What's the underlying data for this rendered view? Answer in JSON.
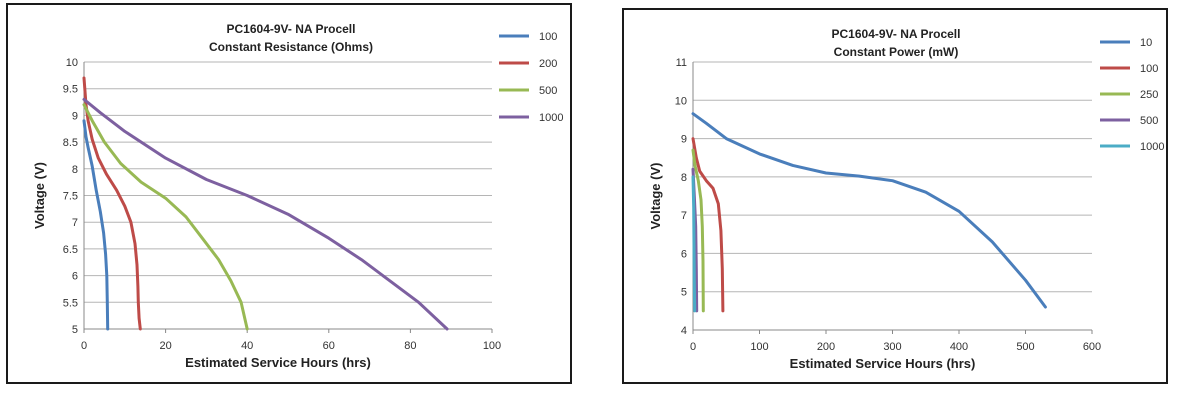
{
  "chart_data": [
    {
      "type": "line",
      "title": "PC1604-9V- NA Procell",
      "subtitle": "Constant Resistance (Ohms)",
      "xlabel": "Estimated Service Hours (hrs)",
      "ylabel": "Voltage (V)",
      "xlim": [
        0,
        100
      ],
      "ylim": [
        5,
        10
      ],
      "xticks": [
        0,
        20,
        40,
        60,
        80,
        100
      ],
      "yticks": [
        5,
        5.5,
        6,
        6.5,
        7,
        7.5,
        8,
        8.5,
        9,
        9.5,
        10
      ],
      "grid": "horizontal",
      "legend_position": "right",
      "series": [
        {
          "name": "100",
          "color": "#4a7ebb",
          "points": [
            [
              0,
              8.9
            ],
            [
              0.5,
              8.6
            ],
            [
              1,
              8.4
            ],
            [
              2,
              8.05
            ],
            [
              3,
              7.6
            ],
            [
              4,
              7.2
            ],
            [
              4.8,
              6.8
            ],
            [
              5.3,
              6.4
            ],
            [
              5.6,
              6.0
            ],
            [
              5.7,
              5.5
            ],
            [
              5.8,
              5.0
            ]
          ]
        },
        {
          "name": "200",
          "color": "#be4b48",
          "points": [
            [
              0,
              9.7
            ],
            [
              0.5,
              9.2
            ],
            [
              1,
              8.9
            ],
            [
              2,
              8.55
            ],
            [
              3.5,
              8.2
            ],
            [
              5.5,
              7.9
            ],
            [
              8,
              7.6
            ],
            [
              10,
              7.3
            ],
            [
              11.5,
              7.0
            ],
            [
              12.5,
              6.6
            ],
            [
              13,
              6.2
            ],
            [
              13.2,
              5.8
            ],
            [
              13.3,
              5.5
            ],
            [
              13.5,
              5.2
            ],
            [
              13.8,
              5.0
            ]
          ]
        },
        {
          "name": "500",
          "color": "#98b954",
          "points": [
            [
              0,
              9.2
            ],
            [
              2,
              8.9
            ],
            [
              5,
              8.5
            ],
            [
              9,
              8.1
            ],
            [
              14,
              7.75
            ],
            [
              20,
              7.45
            ],
            [
              25,
              7.1
            ],
            [
              29,
              6.7
            ],
            [
              33,
              6.3
            ],
            [
              36,
              5.9
            ],
            [
              38.5,
              5.5
            ],
            [
              40,
              5.0
            ]
          ]
        },
        {
          "name": "1000",
          "color": "#7d60a0",
          "points": [
            [
              0,
              9.3
            ],
            [
              4,
              9.05
            ],
            [
              10,
              8.7
            ],
            [
              20,
              8.2
            ],
            [
              30,
              7.8
            ],
            [
              40,
              7.5
            ],
            [
              50,
              7.15
            ],
            [
              60,
              6.7
            ],
            [
              68,
              6.3
            ],
            [
              75,
              5.9
            ],
            [
              82,
              5.5
            ],
            [
              89,
              5.0
            ]
          ]
        }
      ]
    },
    {
      "type": "line",
      "title": "PC1604-9V- NA Procell",
      "subtitle": "Constant Power  (mW)",
      "xlabel": "Estimated Service Hours (hrs)",
      "ylabel": "Voltage (V)",
      "xlim": [
        0,
        600
      ],
      "ylim": [
        4,
        11
      ],
      "xticks": [
        0,
        100,
        200,
        300,
        400,
        500,
        600
      ],
      "yticks": [
        4,
        5,
        6,
        7,
        8,
        9,
        10,
        11
      ],
      "grid": "horizontal",
      "legend_position": "right",
      "series": [
        {
          "name": "10",
          "color": "#4a7ebb",
          "points": [
            [
              0,
              9.65
            ],
            [
              20,
              9.4
            ],
            [
              50,
              9.0
            ],
            [
              100,
              8.6
            ],
            [
              150,
              8.3
            ],
            [
              200,
              8.1
            ],
            [
              250,
              8.02
            ],
            [
              300,
              7.9
            ],
            [
              350,
              7.6
            ],
            [
              400,
              7.1
            ],
            [
              450,
              6.3
            ],
            [
              500,
              5.3
            ],
            [
              530,
              4.6
            ]
          ]
        },
        {
          "name": "100",
          "color": "#be4b48",
          "points": [
            [
              0,
              9.0
            ],
            [
              5,
              8.5
            ],
            [
              10,
              8.15
            ],
            [
              20,
              7.9
            ],
            [
              30,
              7.7
            ],
            [
              38,
              7.3
            ],
            [
              42,
              6.6
            ],
            [
              44,
              5.6
            ],
            [
              45,
              4.5
            ]
          ]
        },
        {
          "name": "250",
          "color": "#98b954",
          "points": [
            [
              0,
              8.7
            ],
            [
              3,
              8.3
            ],
            [
              8,
              7.9
            ],
            [
              12,
              7.4
            ],
            [
              14,
              6.7
            ],
            [
              15,
              5.8
            ],
            [
              15.5,
              4.5
            ]
          ]
        },
        {
          "name": "500",
          "color": "#7d60a0",
          "points": [
            [
              0,
              8.2
            ],
            [
              2,
              7.5
            ],
            [
              4,
              6.7
            ],
            [
              5,
              5.6
            ],
            [
              5.5,
              4.5
            ]
          ]
        },
        {
          "name": "1000",
          "color": "#4bacc6",
          "points": [
            [
              0,
              8.0
            ],
            [
              1,
              7.2
            ],
            [
              1.5,
              6.2
            ],
            [
              2,
              5.2
            ],
            [
              2.5,
              4.5
            ]
          ]
        }
      ]
    }
  ]
}
